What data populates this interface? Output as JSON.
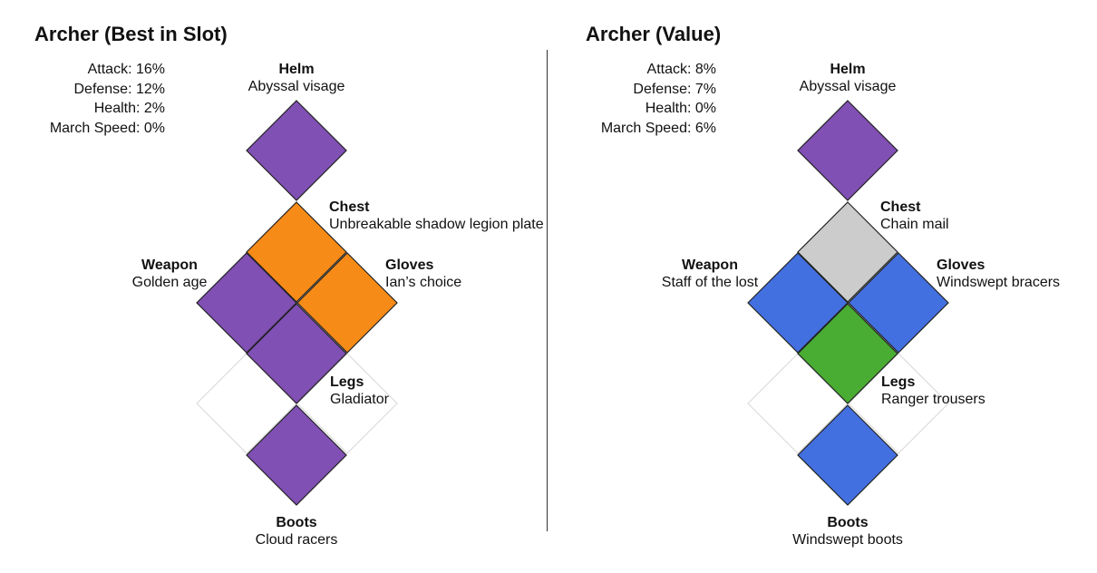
{
  "builds": [
    {
      "title": "Archer (Best in Slot)",
      "stats": [
        {
          "label": "Attack",
          "value": "16%"
        },
        {
          "label": "Defense",
          "value": "12%"
        },
        {
          "label": "Health",
          "value": "2%"
        },
        {
          "label": "March Speed",
          "value": "0%"
        }
      ],
      "slots": {
        "helm": {
          "label": "Helm",
          "item": "Abyssal visage",
          "color": "#8050b4"
        },
        "chest": {
          "label": "Chest",
          "item": "Unbreakable shadow legion plate",
          "color": "#f78b17"
        },
        "weapon": {
          "label": "Weapon",
          "item": "Golden age",
          "color": "#8050b4"
        },
        "gloves": {
          "label": "Gloves",
          "item": "Ian’s choice",
          "color": "#f78b17"
        },
        "legs": {
          "label": "Legs",
          "item": "Gladiator",
          "color": "#8050b4"
        },
        "boots": {
          "label": "Boots",
          "item": "Cloud racers",
          "color": "#8050b4"
        }
      }
    },
    {
      "title": "Archer (Value)",
      "stats": [
        {
          "label": "Attack",
          "value": "8%"
        },
        {
          "label": "Defense",
          "value": "7%"
        },
        {
          "label": "Health",
          "value": "0%"
        },
        {
          "label": "March Speed",
          "value": "6%"
        }
      ],
      "slots": {
        "helm": {
          "label": "Helm",
          "item": "Abyssal visage",
          "color": "#8050b4"
        },
        "chest": {
          "label": "Chest",
          "item": "Chain mail",
          "color": "#cccccc"
        },
        "weapon": {
          "label": "Weapon",
          "item": "Staff of the lost",
          "color": "#4370e0"
        },
        "gloves": {
          "label": "Gloves",
          "item": "Windswept bracers",
          "color": "#4370e0"
        },
        "legs": {
          "label": "Legs",
          "item": "Ranger trousers",
          "color": "#49ac33"
        },
        "boots": {
          "label": "Boots",
          "item": "Windswept boots",
          "color": "#4370e0"
        }
      }
    }
  ]
}
